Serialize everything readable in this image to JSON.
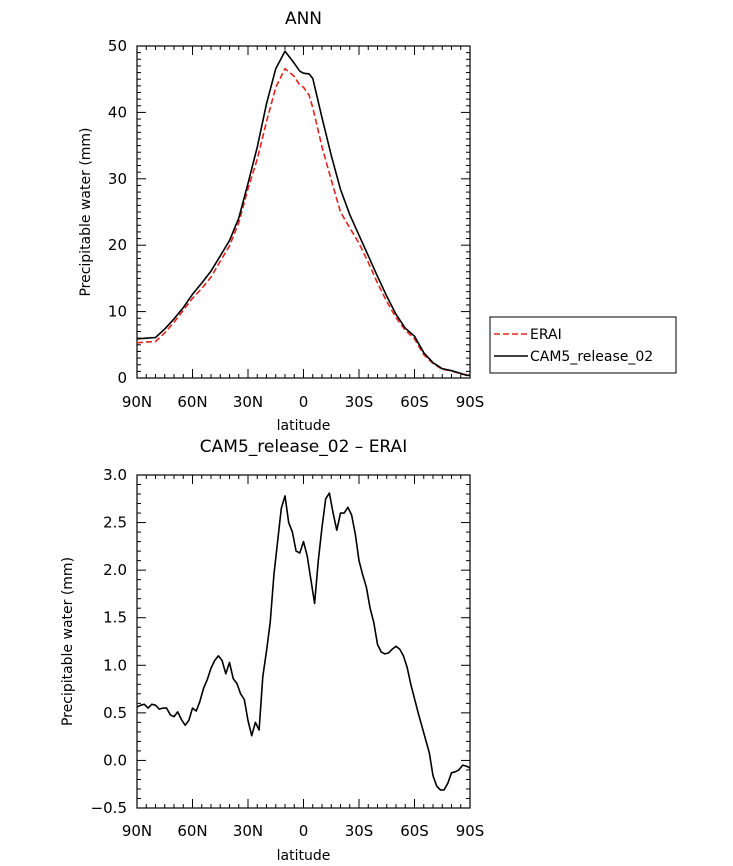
{
  "chart_data": [
    {
      "type": "line",
      "title": "ANN",
      "xlabel": "latitude",
      "ylabel": "Precipitable water (mm)",
      "xlim": [
        90,
        -90
      ],
      "ylim": [
        0,
        50
      ],
      "xticks": [
        90,
        60,
        30,
        0,
        -30,
        -60,
        -90
      ],
      "xtick_labels": [
        "90N",
        "60N",
        "30N",
        "0",
        "30S",
        "60S",
        "90S"
      ],
      "yticks": [
        0,
        10,
        20,
        30,
        40,
        50
      ],
      "ytick_labels": [
        "0",
        "10",
        "20",
        "30",
        "40",
        "50"
      ],
      "legend": "right",
      "series": [
        {
          "name": "ERAI",
          "color": "#e8221e",
          "dash": "dashed",
          "x": [
            90,
            85,
            80,
            75,
            70,
            65,
            60,
            55,
            50,
            45,
            40,
            35,
            30,
            25,
            20,
            15,
            10,
            5,
            2,
            0,
            -3,
            -5,
            -10,
            -15,
            -20,
            -25,
            -30,
            -35,
            -40,
            -45,
            -50,
            -55,
            -60,
            -65,
            -70,
            -75,
            -80,
            -85,
            -88,
            -90
          ],
          "y": [
            5.3,
            5.4,
            5.5,
            6.8,
            8.4,
            10.2,
            12.0,
            13.5,
            15.2,
            17.6,
            19.9,
            23.4,
            28.5,
            33.0,
            38.6,
            43.8,
            46.6,
            45.4,
            44.1,
            43.8,
            42.6,
            40.7,
            34.8,
            29.8,
            25.0,
            22.6,
            20.3,
            17.4,
            14.3,
            11.5,
            9.1,
            7.2,
            5.9,
            3.5,
            2.2,
            1.3,
            1.1,
            0.6,
            0.5,
            0.4
          ]
        },
        {
          "name": "CAM5_release_02",
          "color": "#000000",
          "dash": "solid",
          "x": [
            90,
            85,
            80,
            75,
            70,
            65,
            60,
            55,
            50,
            45,
            40,
            35,
            30,
            25,
            20,
            15,
            10,
            5,
            2,
            0,
            -3,
            -5,
            -10,
            -15,
            -20,
            -25,
            -30,
            -35,
            -40,
            -45,
            -50,
            -55,
            -60,
            -65,
            -70,
            -75,
            -80,
            -85,
            -88,
            -90
          ],
          "y": [
            5.9,
            6.0,
            6.1,
            7.4,
            8.9,
            10.6,
            12.6,
            14.3,
            16.1,
            18.4,
            20.7,
            24.1,
            29.3,
            34.8,
            41.3,
            46.6,
            49.2,
            47.4,
            46.2,
            45.9,
            45.8,
            45.1,
            39.2,
            33.5,
            28.4,
            24.6,
            21.5,
            18.4,
            15.3,
            12.3,
            9.6,
            7.5,
            6.3,
            3.8,
            2.3,
            1.4,
            1.1,
            0.7,
            0.4,
            0.4
          ]
        }
      ]
    },
    {
      "type": "line",
      "title": "CAM5_release_02 – ERAI",
      "xlabel": "latitude",
      "ylabel": "Precipitable water (mm)",
      "xlim": [
        90,
        -90
      ],
      "ylim": [
        -0.5,
        3.0
      ],
      "xticks": [
        90,
        60,
        30,
        0,
        -30,
        -60,
        -90
      ],
      "xtick_labels": [
        "90N",
        "60N",
        "30N",
        "0",
        "30S",
        "60S",
        "90S"
      ],
      "yticks": [
        -0.5,
        0.0,
        0.5,
        1.0,
        1.5,
        2.0,
        2.5,
        3.0
      ],
      "ytick_labels": [
        "−0.5",
        "0.0",
        "0.5",
        "1.0",
        "1.5",
        "2.0",
        "2.5",
        "3.0"
      ],
      "series": [
        {
          "name": "CAM5_release_02 – ERAI",
          "color": "#000000",
          "dash": "solid",
          "x": [
            90,
            88,
            86,
            84,
            82,
            80,
            78,
            76,
            74,
            72,
            70,
            68,
            66,
            64,
            62,
            60,
            58,
            56,
            54,
            52,
            50,
            48,
            46,
            44,
            42,
            40,
            38,
            36,
            34,
            32,
            30,
            28,
            26,
            24,
            22,
            20,
            18,
            16,
            14,
            12,
            10,
            8,
            6,
            4,
            2,
            0,
            -2,
            -4,
            -6,
            -8,
            -10,
            -12,
            -14,
            -16,
            -18,
            -20,
            -22,
            -24,
            -26,
            -28,
            -30,
            -32,
            -34,
            -36,
            -38,
            -40,
            -42,
            -44,
            -46,
            -48,
            -50,
            -52,
            -54,
            -56,
            -58,
            -60,
            -62,
            -64,
            -66,
            -68,
            -70,
            -72,
            -74,
            -76,
            -78,
            -80,
            -82,
            -84,
            -86,
            -88,
            -90
          ],
          "y": [
            0.56,
            0.58,
            0.59,
            0.55,
            0.59,
            0.58,
            0.54,
            0.55,
            0.55,
            0.48,
            0.46,
            0.51,
            0.43,
            0.37,
            0.42,
            0.55,
            0.52,
            0.62,
            0.76,
            0.85,
            0.97,
            1.05,
            1.1,
            1.05,
            0.91,
            1.03,
            0.86,
            0.81,
            0.7,
            0.64,
            0.42,
            0.26,
            0.4,
            0.32,
            0.88,
            1.15,
            1.45,
            1.95,
            2.3,
            2.65,
            2.78,
            2.5,
            2.4,
            2.2,
            2.18,
            2.3,
            2.15,
            1.9,
            1.65,
            2.1,
            2.45,
            2.75,
            2.81,
            2.6,
            2.42,
            2.6,
            2.6,
            2.66,
            2.58,
            2.38,
            2.1,
            1.95,
            1.82,
            1.6,
            1.45,
            1.22,
            1.14,
            1.12,
            1.13,
            1.17,
            1.2,
            1.17,
            1.1,
            0.98,
            0.8,
            0.65,
            0.5,
            0.36,
            0.22,
            0.08,
            -0.16,
            -0.27,
            -0.31,
            -0.31,
            -0.24,
            -0.13,
            -0.12,
            -0.1,
            -0.05,
            -0.06,
            -0.08
          ]
        }
      ]
    }
  ]
}
